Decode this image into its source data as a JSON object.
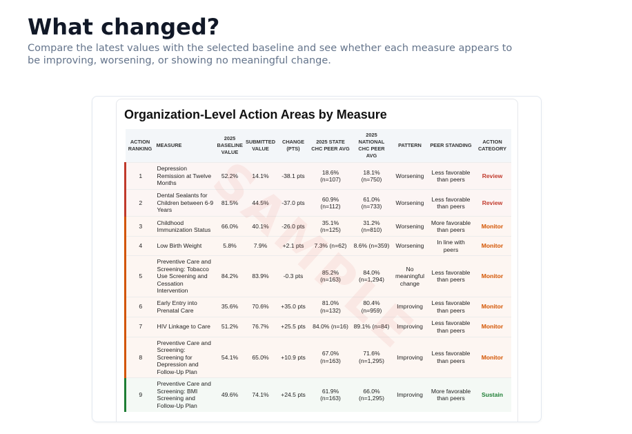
{
  "header": {
    "title": "What changed?",
    "subtitle": "Compare the latest values with the selected baseline and see whether each measure appears to be improving, worsening, or showing no meaningful change."
  },
  "card": {
    "title": "Organization-Level Action Areas by Measure",
    "watermark": "SAMPLE"
  },
  "table": {
    "headers": [
      "ACTION RANKING",
      "MEASURE",
      "2025 BASELINE VALUE",
      "SUBMITTED VALUE",
      "CHANGE (PTS)",
      "2025 STATE CHC PEER AVG",
      "2025 NATIONAL CHC PEER AVG",
      "PATTERN",
      "PEER STANDING",
      "ACTION CATEGORY"
    ],
    "rows": [
      {
        "color": "#c0392b",
        "cells": [
          "1",
          "Depression Remission at Twelve Months",
          "52.2%",
          "14.1%",
          "-38.1 pts",
          "18.6% (n=107)",
          "18.1% (n=750)",
          "Worsening",
          "Less favorable than peers",
          "Review"
        ]
      },
      {
        "color": "#c0392b",
        "cells": [
          "2",
          "Dental Sealants for Children between 6-9 Years",
          "81.5%",
          "44.5%",
          "-37.0 pts",
          "60.9% (n=112)",
          "61.0% (n=733)",
          "Worsening",
          "Less favorable than peers",
          "Review"
        ]
      },
      {
        "color": "#d35400",
        "cells": [
          "3",
          "Childhood Immunization Status",
          "66.0%",
          "40.1%",
          "-26.0 pts",
          "35.1% (n=125)",
          "31.2% (n=810)",
          "Worsening",
          "More favorable than peers",
          "Monitor"
        ]
      },
      {
        "color": "#d35400",
        "cells": [
          "4",
          "Low Birth Weight",
          "5.8%",
          "7.9%",
          "+2.1 pts",
          "7.3% (n=62)",
          "8.6% (n=359)",
          "Worsening",
          "In line with peers",
          "Monitor"
        ]
      },
      {
        "color": "#d35400",
        "cells": [
          "5",
          "Preventive Care and Screening: Tobacco Use Screening and Cessation Intervention",
          "84.2%",
          "83.9%",
          "-0.3 pts",
          "85.2% (n=163)",
          "84.0% (n=1,294)",
          "No meaningful change",
          "Less favorable than peers",
          "Monitor"
        ]
      },
      {
        "color": "#d35400",
        "cells": [
          "6",
          "Early Entry into Prenatal Care",
          "35.6%",
          "70.6%",
          "+35.0 pts",
          "81.0% (n=132)",
          "80.4% (n=959)",
          "Improving",
          "Less favorable than peers",
          "Monitor"
        ]
      },
      {
        "color": "#d35400",
        "cells": [
          "7",
          "HIV Linkage to Care",
          "51.2%",
          "76.7%",
          "+25.5 pts",
          "84.0% (n=16)",
          "89.1% (n=84)",
          "Improving",
          "Less favorable than peers",
          "Monitor"
        ]
      },
      {
        "color": "#d35400",
        "cells": [
          "8",
          "Preventive Care and Screening: Screening for Depression and Follow-Up Plan",
          "54.1%",
          "65.0%",
          "+10.9 pts",
          "67.0% (n=163)",
          "71.6% (n=1,295)",
          "Improving",
          "Less favorable than peers",
          "Monitor"
        ]
      },
      {
        "color": "#1e7e34",
        "cells": [
          "9",
          "Preventive Care and Screening: BMI Screening and Follow-Up Plan",
          "49.6%",
          "74.1%",
          "+24.5 pts",
          "61.9% (n=163)",
          "66.0% (n=1,295)",
          "Improving",
          "More favorable than peers",
          "Sustain"
        ]
      }
    ]
  }
}
